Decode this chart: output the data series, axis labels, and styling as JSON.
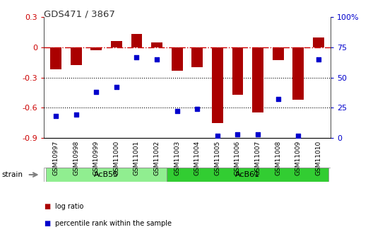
{
  "title": "GDS471 / 3867",
  "samples": [
    "GSM10997",
    "GSM10998",
    "GSM10999",
    "GSM11000",
    "GSM11001",
    "GSM11002",
    "GSM11003",
    "GSM11004",
    "GSM11005",
    "GSM11006",
    "GSM11007",
    "GSM11008",
    "GSM11009",
    "GSM11010"
  ],
  "log_ratio": [
    -0.22,
    -0.18,
    -0.03,
    0.06,
    0.13,
    0.05,
    -0.23,
    -0.2,
    -0.75,
    -0.47,
    -0.65,
    -0.13,
    -0.52,
    0.1
  ],
  "percentile": [
    18,
    19,
    38,
    42,
    67,
    65,
    22,
    24,
    2,
    3,
    3,
    32,
    2,
    65
  ],
  "ylim_left": [
    -0.9,
    0.3
  ],
  "ylim_right": [
    0,
    100
  ],
  "hline_y": 0.0,
  "dotted_lines": [
    -0.3,
    -0.6
  ],
  "right_ticks": [
    0,
    25,
    50,
    75,
    100
  ],
  "right_tick_labels": [
    "0",
    "25",
    "50",
    "75",
    "100%"
  ],
  "left_ticks": [
    -0.9,
    -0.6,
    -0.3,
    0.0,
    0.3
  ],
  "left_tick_labels": [
    "-0.9",
    "-0.6",
    "-0.3",
    "0",
    "0.3"
  ],
  "groups": [
    {
      "label": "AcB55",
      "start": 0,
      "end": 5,
      "color": "#90ee90"
    },
    {
      "label": "AcB61",
      "start": 6,
      "end": 13,
      "color": "#32cd32"
    }
  ],
  "bar_color": "#aa0000",
  "dot_color": "#0000cc",
  "bar_width": 0.55,
  "background_color": "#ffffff",
  "plot_bg_color": "#ffffff",
  "strain_label": "strain",
  "legend_items": [
    {
      "color": "#aa0000",
      "label": "log ratio"
    },
    {
      "color": "#0000cc",
      "label": "percentile rank within the sample"
    }
  ]
}
